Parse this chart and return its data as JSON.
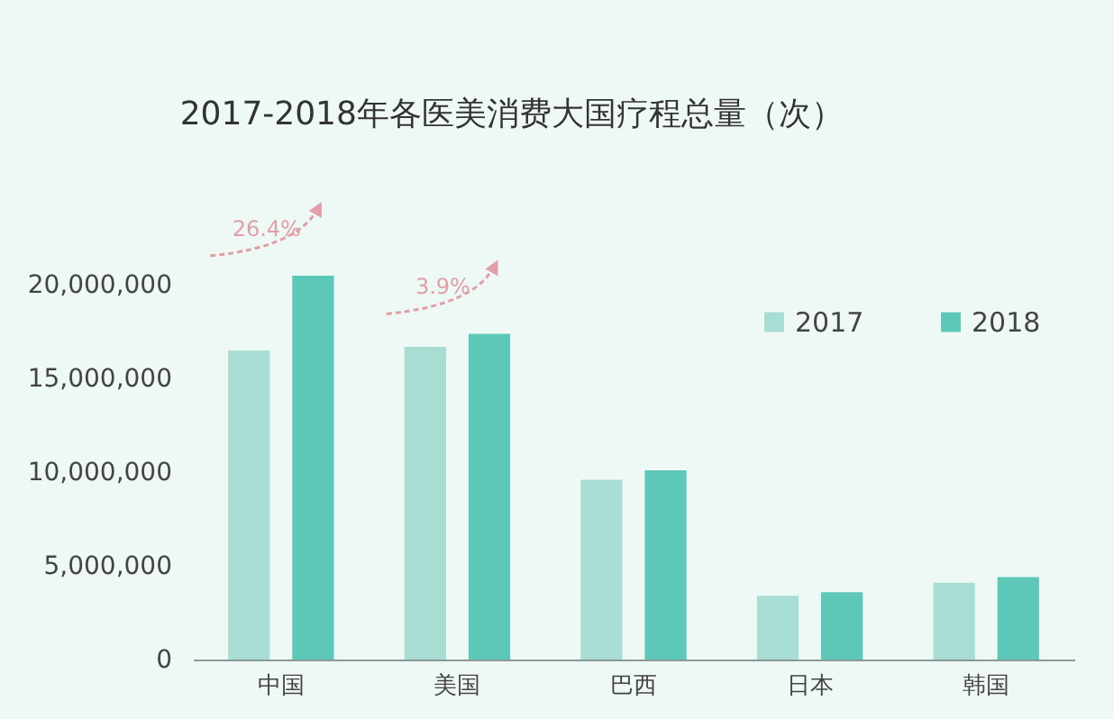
{
  "chart_data": {
    "type": "bar",
    "title": "2017-2018年各医美消费大国疗程总量（次）",
    "categories": [
      "中国",
      "美国",
      "巴西",
      "日本",
      "韩国"
    ],
    "series": [
      {
        "name": "2017",
        "color": "#a8ddd3",
        "values": [
          16500000,
          16700000,
          9600000,
          3400000,
          4100000
        ]
      },
      {
        "name": "2018",
        "color": "#5ec8b8",
        "values": [
          20500000,
          17400000,
          10100000,
          3600000,
          4400000
        ]
      }
    ],
    "ylim": [
      0,
      20500000
    ],
    "yticks": [
      {
        "value": 0,
        "label": "0"
      },
      {
        "value": 5000000,
        "label": "5,000,000"
      },
      {
        "value": 10000000,
        "label": "10,000,000"
      },
      {
        "value": 15000000,
        "label": "15,000,000"
      },
      {
        "value": 20000000,
        "label": "20,000,000"
      }
    ],
    "annotations": [
      "26.4%",
      "3.9%"
    ],
    "grid": false,
    "legend": "top right"
  }
}
